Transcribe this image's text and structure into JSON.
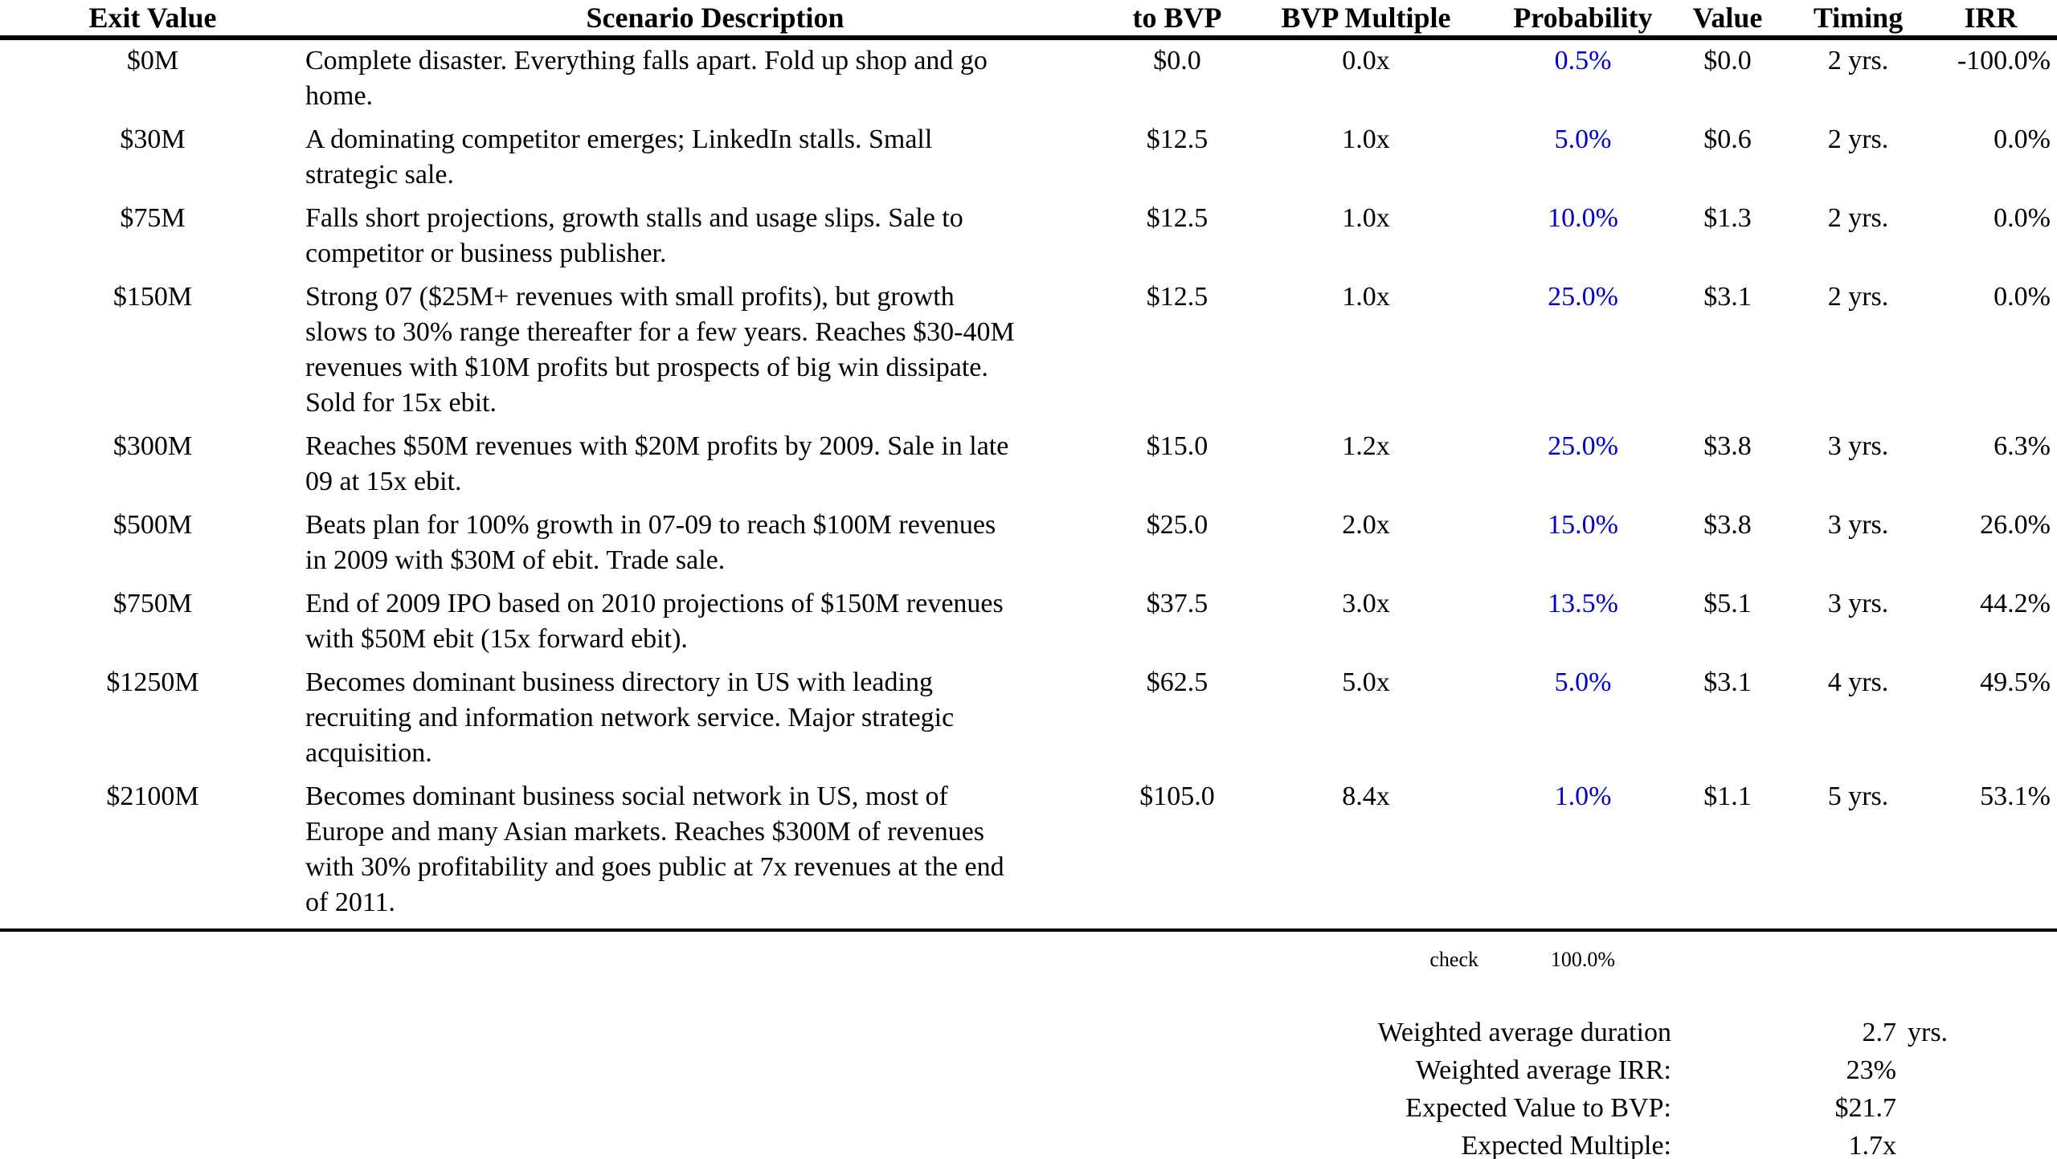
{
  "table": {
    "headers": {
      "exit_value": "Exit Value",
      "description": "Scenario Description",
      "to_bvp": "to BVP",
      "bvp_multiple": "BVP Multiple",
      "probability": "Probability",
      "value": "Value",
      "timing": "Timing",
      "irr": "IRR"
    },
    "rows": [
      {
        "exit_value": "$0M",
        "description": "Complete disaster. Everything falls apart. Fold up shop and go\nhome.",
        "to_bvp": "$0.0",
        "bvp_multiple": "0.0x",
        "probability": "0.5%",
        "value": "$0.0",
        "timing": "2 yrs.",
        "irr": "-100.0%"
      },
      {
        "exit_value": "$30M",
        "description": "A dominating competitor emerges; LinkedIn stalls. Small\nstrategic sale.",
        "to_bvp": "$12.5",
        "bvp_multiple": "1.0x",
        "probability": "5.0%",
        "value": "$0.6",
        "timing": "2 yrs.",
        "irr": "0.0%"
      },
      {
        "exit_value": "$75M",
        "description": "Falls short projections, growth stalls and usage slips. Sale to\ncompetitor or business publisher.",
        "to_bvp": "$12.5",
        "bvp_multiple": "1.0x",
        "probability": "10.0%",
        "value": "$1.3",
        "timing": "2 yrs.",
        "irr": "0.0%"
      },
      {
        "exit_value": "$150M",
        "description": "Strong 07 ($25M+ revenues with small profits), but growth\nslows to 30% range thereafter for a few years. Reaches $30-40M\nrevenues with $10M profits but prospects of big win dissipate.\nSold for 15x ebit.",
        "to_bvp": "$12.5",
        "bvp_multiple": "1.0x",
        "probability": "25.0%",
        "value": "$3.1",
        "timing": "2 yrs.",
        "irr": "0.0%"
      },
      {
        "exit_value": "$300M",
        "description": "Reaches $50M revenues with $20M profits by 2009. Sale in late\n09 at 15x ebit.",
        "to_bvp": "$15.0",
        "bvp_multiple": "1.2x",
        "probability": "25.0%",
        "value": "$3.8",
        "timing": "3 yrs.",
        "irr": "6.3%"
      },
      {
        "exit_value": "$500M",
        "description": "Beats plan for 100% growth in 07-09 to reach $100M revenues\nin 2009 with $30M of ebit. Trade sale.",
        "to_bvp": "$25.0",
        "bvp_multiple": "2.0x",
        "probability": "15.0%",
        "value": "$3.8",
        "timing": "3 yrs.",
        "irr": "26.0%"
      },
      {
        "exit_value": "$750M",
        "description": "End of 2009 IPO based on 2010 projections of $150M revenues\nwith $50M ebit (15x forward ebit).",
        "to_bvp": "$37.5",
        "bvp_multiple": "3.0x",
        "probability": "13.5%",
        "value": "$5.1",
        "timing": "3 yrs.",
        "irr": "44.2%"
      },
      {
        "exit_value": "$1250M",
        "description": "Becomes dominant business directory in US with leading\nrecruiting and information network service. Major strategic\nacquisition.",
        "to_bvp": "$62.5",
        "bvp_multiple": "5.0x",
        "probability": "5.0%",
        "value": "$3.1",
        "timing": "4 yrs.",
        "irr": "49.5%"
      },
      {
        "exit_value": "$2100M",
        "description": "Becomes dominant business social network in US, most of\nEurope and many Asian markets. Reaches $300M of revenues\nwith 30% profitability and goes public at 7x revenues at the end\nof 2011.",
        "to_bvp": "$105.0",
        "bvp_multiple": "8.4x",
        "probability": "1.0%",
        "value": "$1.1",
        "timing": "5 yrs.",
        "irr": "53.1%"
      }
    ]
  },
  "check": {
    "label": "check",
    "total": "100.0%"
  },
  "summary": {
    "duration": {
      "label": "Weighted average duration",
      "value": "2.7",
      "suffix": "yrs."
    },
    "irr": {
      "label": "Weighted average IRR:",
      "value": "23%"
    },
    "expected_value": {
      "label": "Expected Value to BVP:",
      "value": "$21.7"
    },
    "expected_multiple": {
      "label": "Expected Multiple:",
      "value": "1.7x"
    }
  },
  "colors": {
    "probability_text": "#0000CC",
    "body_text": "#000000",
    "background": "#FFFFFF"
  }
}
